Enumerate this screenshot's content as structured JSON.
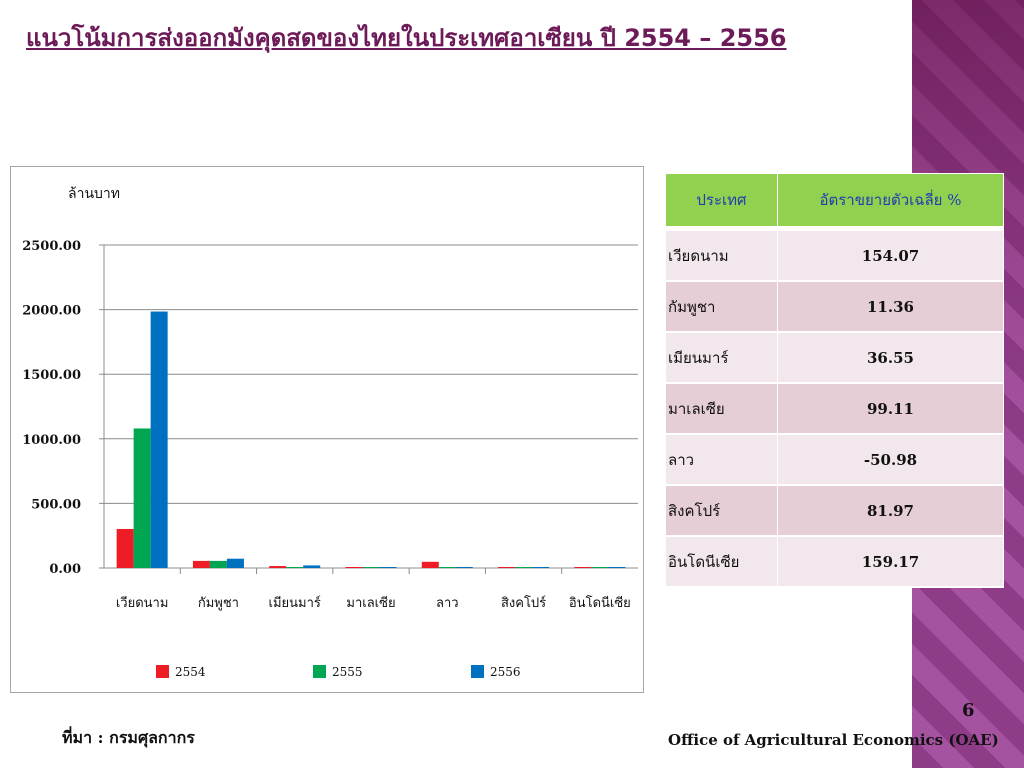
{
  "slide": {
    "title": "แนวโน้มการส่งออกมังคุดสดของไทยในประเทศอาเซียน ปี 2554 – 2556",
    "source": "ที่มา : กรมศุลกากร",
    "page_number": "6",
    "organization": "Office of Agricultural Economics (OAE)"
  },
  "chart_data": {
    "type": "bar",
    "ylabel": "ล้านบาท",
    "ylim": [
      0,
      2500
    ],
    "yticks": [
      "0.00",
      "500.00",
      "1000.00",
      "1500.00",
      "2000.00",
      "2500.00"
    ],
    "grid": true,
    "legend_position": "bottom",
    "categories": [
      "เวียดนาม",
      "กัมพูชา",
      "เมียนมาร์",
      "มาเลเซีย",
      "ลาว",
      "สิงคโปร์",
      "อินโดนีเซีย"
    ],
    "series": [
      {
        "name": "2554",
        "color": "#ee1c25",
        "values": [
          302,
          55,
          15,
          3,
          48,
          3,
          3
        ]
      },
      {
        "name": "2555",
        "color": "#00a651",
        "values": [
          1080,
          55,
          3,
          3,
          3,
          3,
          3
        ]
      },
      {
        "name": "2556",
        "color": "#0070c0",
        "values": [
          1985,
          72,
          20,
          3,
          5,
          3,
          3
        ]
      }
    ]
  },
  "table": {
    "headers": [
      "ประเทศ",
      "อัตราขยายตัวเฉลี่ย %"
    ],
    "rows": [
      {
        "country": "เวียดนาม",
        "rate": "154.07"
      },
      {
        "country": "กัมพูชา",
        "rate": "11.36"
      },
      {
        "country": "เมียนมาร์",
        "rate": "36.55"
      },
      {
        "country": "มาเลเซีย",
        "rate": "99.11"
      },
      {
        "country": "ลาว",
        "rate": "-50.98"
      },
      {
        "country": "สิงคโปร์",
        "rate": "81.97"
      },
      {
        "country": "อินโดนีเซีย",
        "rate": "159.17"
      }
    ]
  }
}
